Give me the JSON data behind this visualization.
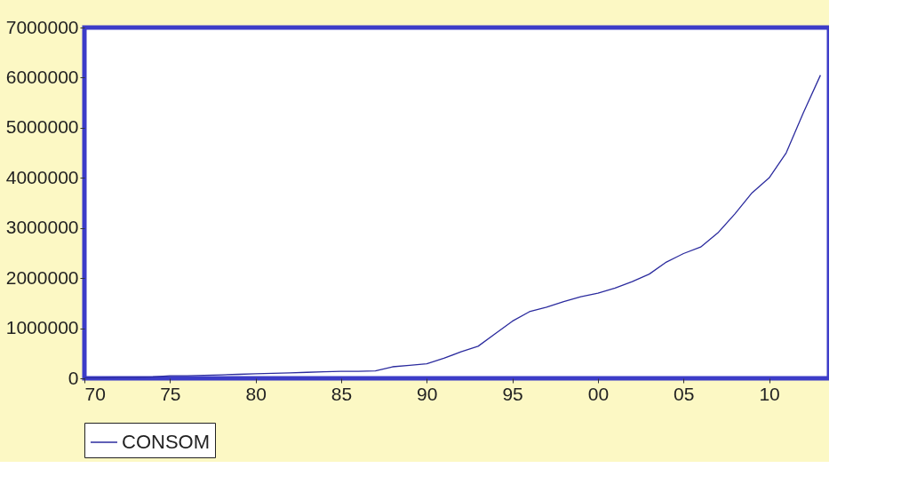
{
  "chart_data": {
    "type": "line",
    "x": [
      1970,
      1971,
      1972,
      1973,
      1974,
      1975,
      1976,
      1977,
      1978,
      1979,
      1980,
      1981,
      1982,
      1983,
      1984,
      1985,
      1986,
      1987,
      1988,
      1989,
      1990,
      1991,
      1992,
      1993,
      1994,
      1995,
      1996,
      1997,
      1998,
      1999,
      2000,
      2001,
      2002,
      2003,
      2004,
      2005,
      2006,
      2007,
      2008,
      2009,
      2010,
      2011,
      2012,
      2013
    ],
    "series": [
      {
        "name": "CONSOM",
        "color": "#2b2b9e",
        "values": [
          10000,
          10000,
          20000,
          20000,
          30000,
          50000,
          50000,
          60000,
          70000,
          80000,
          90000,
          100000,
          110000,
          120000,
          130000,
          140000,
          140000,
          150000,
          230000,
          260000,
          290000,
          400000,
          530000,
          640000,
          890000,
          1140000,
          1330000,
          1420000,
          1530000,
          1630000,
          1700000,
          1800000,
          1930000,
          2080000,
          2320000,
          2490000,
          2620000,
          2900000,
          3280000,
          3700000,
          4000000,
          4500000,
          5300000,
          6050000
        ]
      }
    ],
    "xlim": [
      1970,
      2013.5
    ],
    "xticks": [
      {
        "value": 1970,
        "label": "70"
      },
      {
        "value": 1975,
        "label": "75"
      },
      {
        "value": 1980,
        "label": "80"
      },
      {
        "value": 1985,
        "label": "85"
      },
      {
        "value": 1990,
        "label": "90"
      },
      {
        "value": 1995,
        "label": "95"
      },
      {
        "value": 2000,
        "label": "00"
      },
      {
        "value": 2005,
        "label": "05"
      },
      {
        "value": 2010,
        "label": "10"
      }
    ],
    "ylim": [
      0,
      7000000
    ],
    "yticks": [
      0,
      1000000,
      2000000,
      3000000,
      4000000,
      5000000,
      6000000,
      7000000
    ],
    "grid": false,
    "legend": "bottom",
    "line_style": "solid",
    "marker": "none"
  }
}
